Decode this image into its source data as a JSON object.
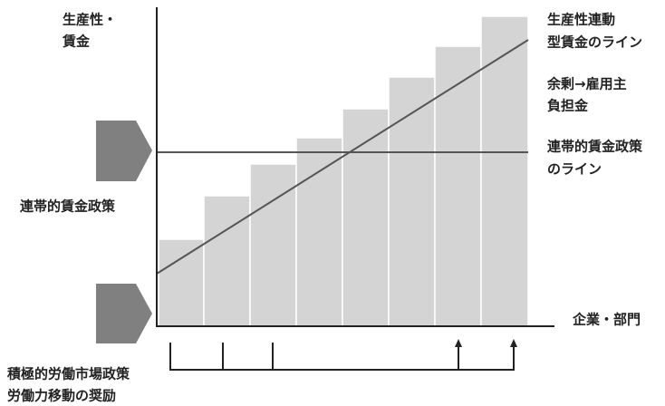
{
  "y_axis_label": [
    "生産性・",
    "賃金"
  ],
  "x_axis_label": "企業・部門",
  "right_labels": [
    [
      "生産性連動",
      "型賃金のライン"
    ],
    [
      "余剰→雇用主",
      "負担金"
    ],
    [
      "連帯的賃金政策",
      "のライン"
    ]
  ],
  "left_label": "連帯的賃金政策",
  "bottom_labels": [
    "積極的労働市場政策",
    "労働力移動の奨励"
  ]
}
